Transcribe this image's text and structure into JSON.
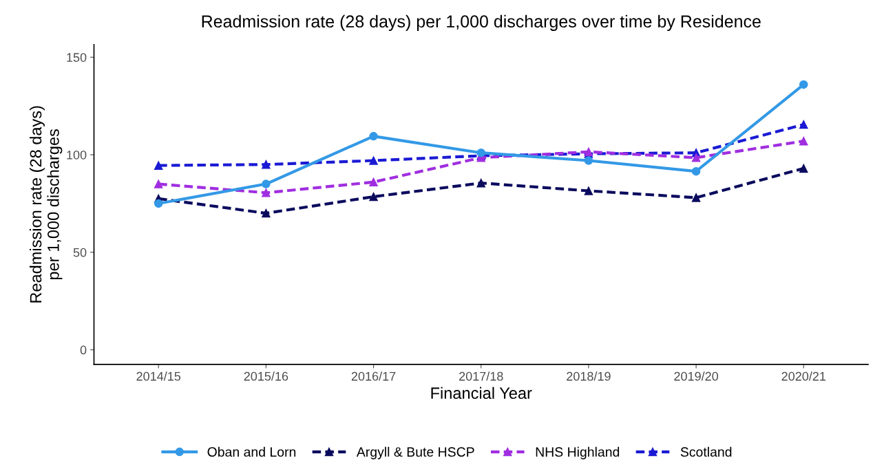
{
  "chart_data": {
    "type": "line",
    "title": "Readmission rate (28 days) per 1,000 discharges over time by Residence",
    "xlabel": "Financial Year",
    "ylabel": "Readmission rate (28 days)\nper 1,000 discharges",
    "categories": [
      "2014/15",
      "2015/16",
      "2016/17",
      "2017/18",
      "2018/19",
      "2019/20",
      "2020/21"
    ],
    "series": [
      {
        "name": "Oban and Lorn",
        "color": "#3399e6",
        "marker": "circle",
        "line_style": "solid",
        "values": [
          75,
          85,
          109.5,
          101,
          97,
          91.5,
          136
        ]
      },
      {
        "name": "Argyll & Bute HSCP",
        "color": "#0b0b5e",
        "marker": "triangle",
        "line_style": "dashed",
        "values": [
          77.5,
          70,
          78.5,
          85.5,
          81.5,
          78,
          93
        ]
      },
      {
        "name": "NHS Highland",
        "color": "#a02ee0",
        "marker": "triangle",
        "line_style": "dashed",
        "values": [
          85,
          80.5,
          86,
          98.5,
          101.5,
          98.5,
          107
        ]
      },
      {
        "name": "Scotland",
        "color": "#1a1ad4",
        "marker": "triangle",
        "line_style": "dashed",
        "values": [
          94.5,
          95,
          97,
          99.5,
          100.5,
          101,
          115.5
        ]
      }
    ],
    "ylim": [
      -7.5,
      156.5
    ],
    "yticks": [
      0,
      50,
      100,
      150
    ],
    "grid": false,
    "legend": "bottom"
  }
}
